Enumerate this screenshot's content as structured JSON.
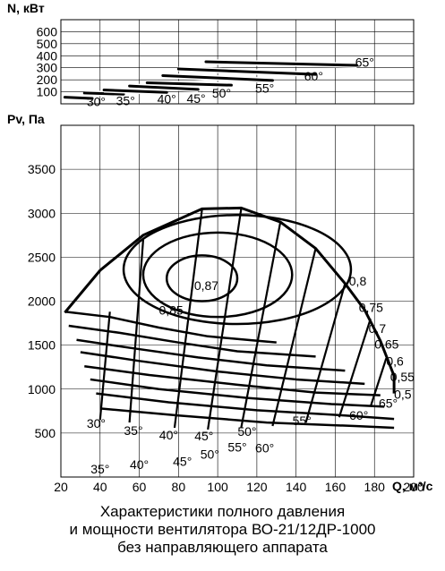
{
  "chart_data": [
    {
      "type": "line",
      "title": "",
      "ylabel": "N, кВт",
      "xlabel": "",
      "x_range": [
        20,
        200
      ],
      "ylim": [
        0,
        700
      ],
      "y_ticks": [
        "100",
        "200",
        "300",
        "400",
        "500",
        "600"
      ],
      "y_tick_values": [
        100,
        200,
        300,
        400,
        500,
        600
      ],
      "grid": true,
      "series": [
        {
          "name": "30°",
          "label": "30°",
          "x": [
            22,
            36
          ],
          "y": [
            55,
            45
          ],
          "label_at": [
            38,
            20
          ]
        },
        {
          "name": "35°",
          "label": "35°",
          "x": [
            32,
            52
          ],
          "y": [
            90,
            80
          ],
          "label_at": [
            53,
            25
          ]
        },
        {
          "name": "40°",
          "label": "40°",
          "x": [
            42,
            74
          ],
          "y": [
            115,
            95
          ],
          "label_at": [
            74,
            40
          ]
        },
        {
          "name": "45°",
          "label": "45°",
          "x": [
            55,
            90
          ],
          "y": [
            148,
            120
          ],
          "label_at": [
            89,
            45
          ]
        },
        {
          "name": "50°",
          "label": "50°",
          "x": [
            64,
            107
          ],
          "y": [
            175,
            155
          ],
          "label_at": [
            102,
            90
          ]
        },
        {
          "name": "55°",
          "label": "55°",
          "x": [
            72,
            128
          ],
          "y": [
            235,
            195
          ],
          "label_at": [
            124,
            130
          ]
        },
        {
          "name": "60°",
          "label": "60°",
          "x": [
            80,
            150
          ],
          "y": [
            290,
            245
          ],
          "label_at": [
            149,
            230
          ]
        },
        {
          "name": "65°",
          "label": "65°",
          "x": [
            94,
            171
          ],
          "y": [
            350,
            320
          ],
          "label_at": [
            175,
            345
          ]
        }
      ]
    },
    {
      "type": "line",
      "title": "",
      "ylabel": "Pv, Па",
      "xlabel": "Q, м³/с",
      "xlim": [
        20,
        200
      ],
      "ylim": [
        0,
        4000
      ],
      "x_ticks": [
        "20",
        "40",
        "60",
        "80",
        "100",
        "120",
        "140",
        "160",
        "180",
        "200"
      ],
      "x_tick_values": [
        20,
        40,
        60,
        80,
        100,
        120,
        140,
        160,
        180,
        200
      ],
      "y_ticks": [
        "500",
        "1000",
        "1500",
        "2000",
        "2500",
        "3000",
        "3500"
      ],
      "y_tick_values": [
        500,
        1000,
        1500,
        2000,
        2500,
        3000,
        3500
      ],
      "grid": true,
      "blade_angle_curves": [
        {
          "label": "30°",
          "x": [
            22,
            45,
            70,
            95,
            130
          ],
          "y": [
            1880,
            1820,
            1700,
            1600,
            1530
          ],
          "label_at": [
            38,
            610
          ]
        },
        {
          "label": "35°",
          "x": [
            24,
            50,
            80,
            110,
            150
          ],
          "y": [
            1720,
            1640,
            1530,
            1430,
            1370
          ],
          "label_at": [
            57,
            530
          ]
        },
        {
          "label": "40°",
          "x": [
            28,
            55,
            90,
            125,
            165
          ],
          "y": [
            1560,
            1470,
            1360,
            1270,
            1210
          ],
          "label_at": [
            75,
            480
          ]
        },
        {
          "label": "45°",
          "x": [
            30,
            60,
            100,
            140,
            175
          ],
          "y": [
            1420,
            1320,
            1200,
            1110,
            1060
          ],
          "label_at": [
            93,
            470
          ]
        },
        {
          "label": "50°",
          "x": [
            32,
            65,
            110,
            150,
            183
          ],
          "y": [
            1260,
            1160,
            1050,
            960,
            930
          ],
          "label_at": [
            115,
            520
          ]
        },
        {
          "label": "55°",
          "x": [
            35,
            70,
            115,
            158,
            185
          ],
          "y": [
            1110,
            1000,
            900,
            830,
            800
          ],
          "label_at": [
            143,
            640
          ]
        },
        {
          "label": "60°",
          "x": [
            38,
            75,
            120,
            165,
            190
          ],
          "y": [
            950,
            850,
            760,
            700,
            660
          ],
          "label_at": [
            172,
            700
          ]
        },
        {
          "label": "65°",
          "x": [
            40,
            80,
            125,
            170,
            190
          ],
          "y": [
            780,
            700,
            620,
            580,
            560
          ],
          "label_at": [
            187,
            840
          ]
        }
      ],
      "lower_angle_labels": [
        {
          "label": "35°",
          "label_at": [
            40,
            90
          ]
        },
        {
          "label": "40°",
          "label_at": [
            60,
            140
          ]
        },
        {
          "label": "45°",
          "label_at": [
            82,
            180
          ]
        },
        {
          "label": "50°",
          "label_at": [
            96,
            260
          ]
        },
        {
          "label": "55°",
          "label_at": [
            110,
            340
          ]
        },
        {
          "label": "60°",
          "label_at": [
            124,
            330
          ]
        }
      ],
      "efficiency_labels": [
        {
          "label": "0,87",
          "label_at": [
            88,
            2180
          ]
        },
        {
          "label": "0,85",
          "label_at": [
            70,
            1900
          ]
        },
        {
          "label": "0,8",
          "label_at": [
            167,
            2230
          ]
        },
        {
          "label": "0,75",
          "label_at": [
            172,
            1930
          ]
        },
        {
          "label": "0,7",
          "label_at": [
            177,
            1690
          ]
        },
        {
          "label": "0,65",
          "label_at": [
            180,
            1510
          ]
        },
        {
          "label": "0,6",
          "label_at": [
            186,
            1320
          ]
        },
        {
          "label": "0,55",
          "label_at": [
            188,
            1140
          ]
        },
        {
          "label": "0,5",
          "label_at": [
            190,
            940
          ]
        }
      ]
    }
  ],
  "caption": {
    "line1": "Характеристики полного давления",
    "line2": "и мощности вентилятора ВО-21/12ДР-1000",
    "line3": "без направляющего аппарата"
  }
}
